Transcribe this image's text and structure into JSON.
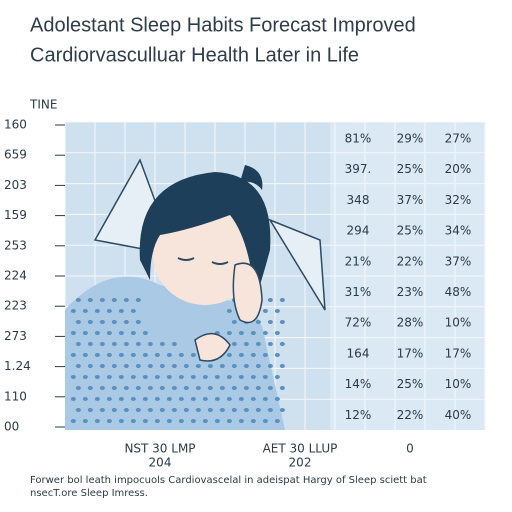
{
  "header": {
    "title_lines": [
      "Adolestant Sleep Habits Forecast Improved",
      "Cardiorvasculluar Health Later in Life"
    ]
  },
  "axis": {
    "title": "TINE",
    "labels": [
      "160",
      "659",
      "203",
      "159",
      "253",
      "224",
      "223",
      "273",
      "1.24",
      "110",
      "00"
    ]
  },
  "table": {
    "rows": [
      [
        "81%",
        "29%",
        "27%"
      ],
      [
        "397.",
        "25%",
        "20%"
      ],
      [
        "348",
        "37%",
        "32%"
      ],
      [
        "294",
        "25%",
        "34%"
      ],
      [
        "21%",
        "22%",
        "37%"
      ],
      [
        "31%",
        "23%",
        "48%"
      ],
      [
        "72%",
        "28%",
        "10%"
      ],
      [
        "164",
        "17%",
        "17%"
      ],
      [
        "14%",
        "25%",
        "10%"
      ],
      [
        "12%",
        "22%",
        "40%"
      ]
    ]
  },
  "footer_labels": [
    {
      "line1": "NST 30 LMP",
      "line2": "204"
    },
    {
      "line1": "AET 30 LLUP",
      "line2": "202"
    },
    {
      "line1": "0"
    }
  ],
  "caption": "Forwer bol leath impocuols Cardiovascelal in adeispat Hargy of Sleep sciett bat nsecT.ore Sleep Imress."
}
